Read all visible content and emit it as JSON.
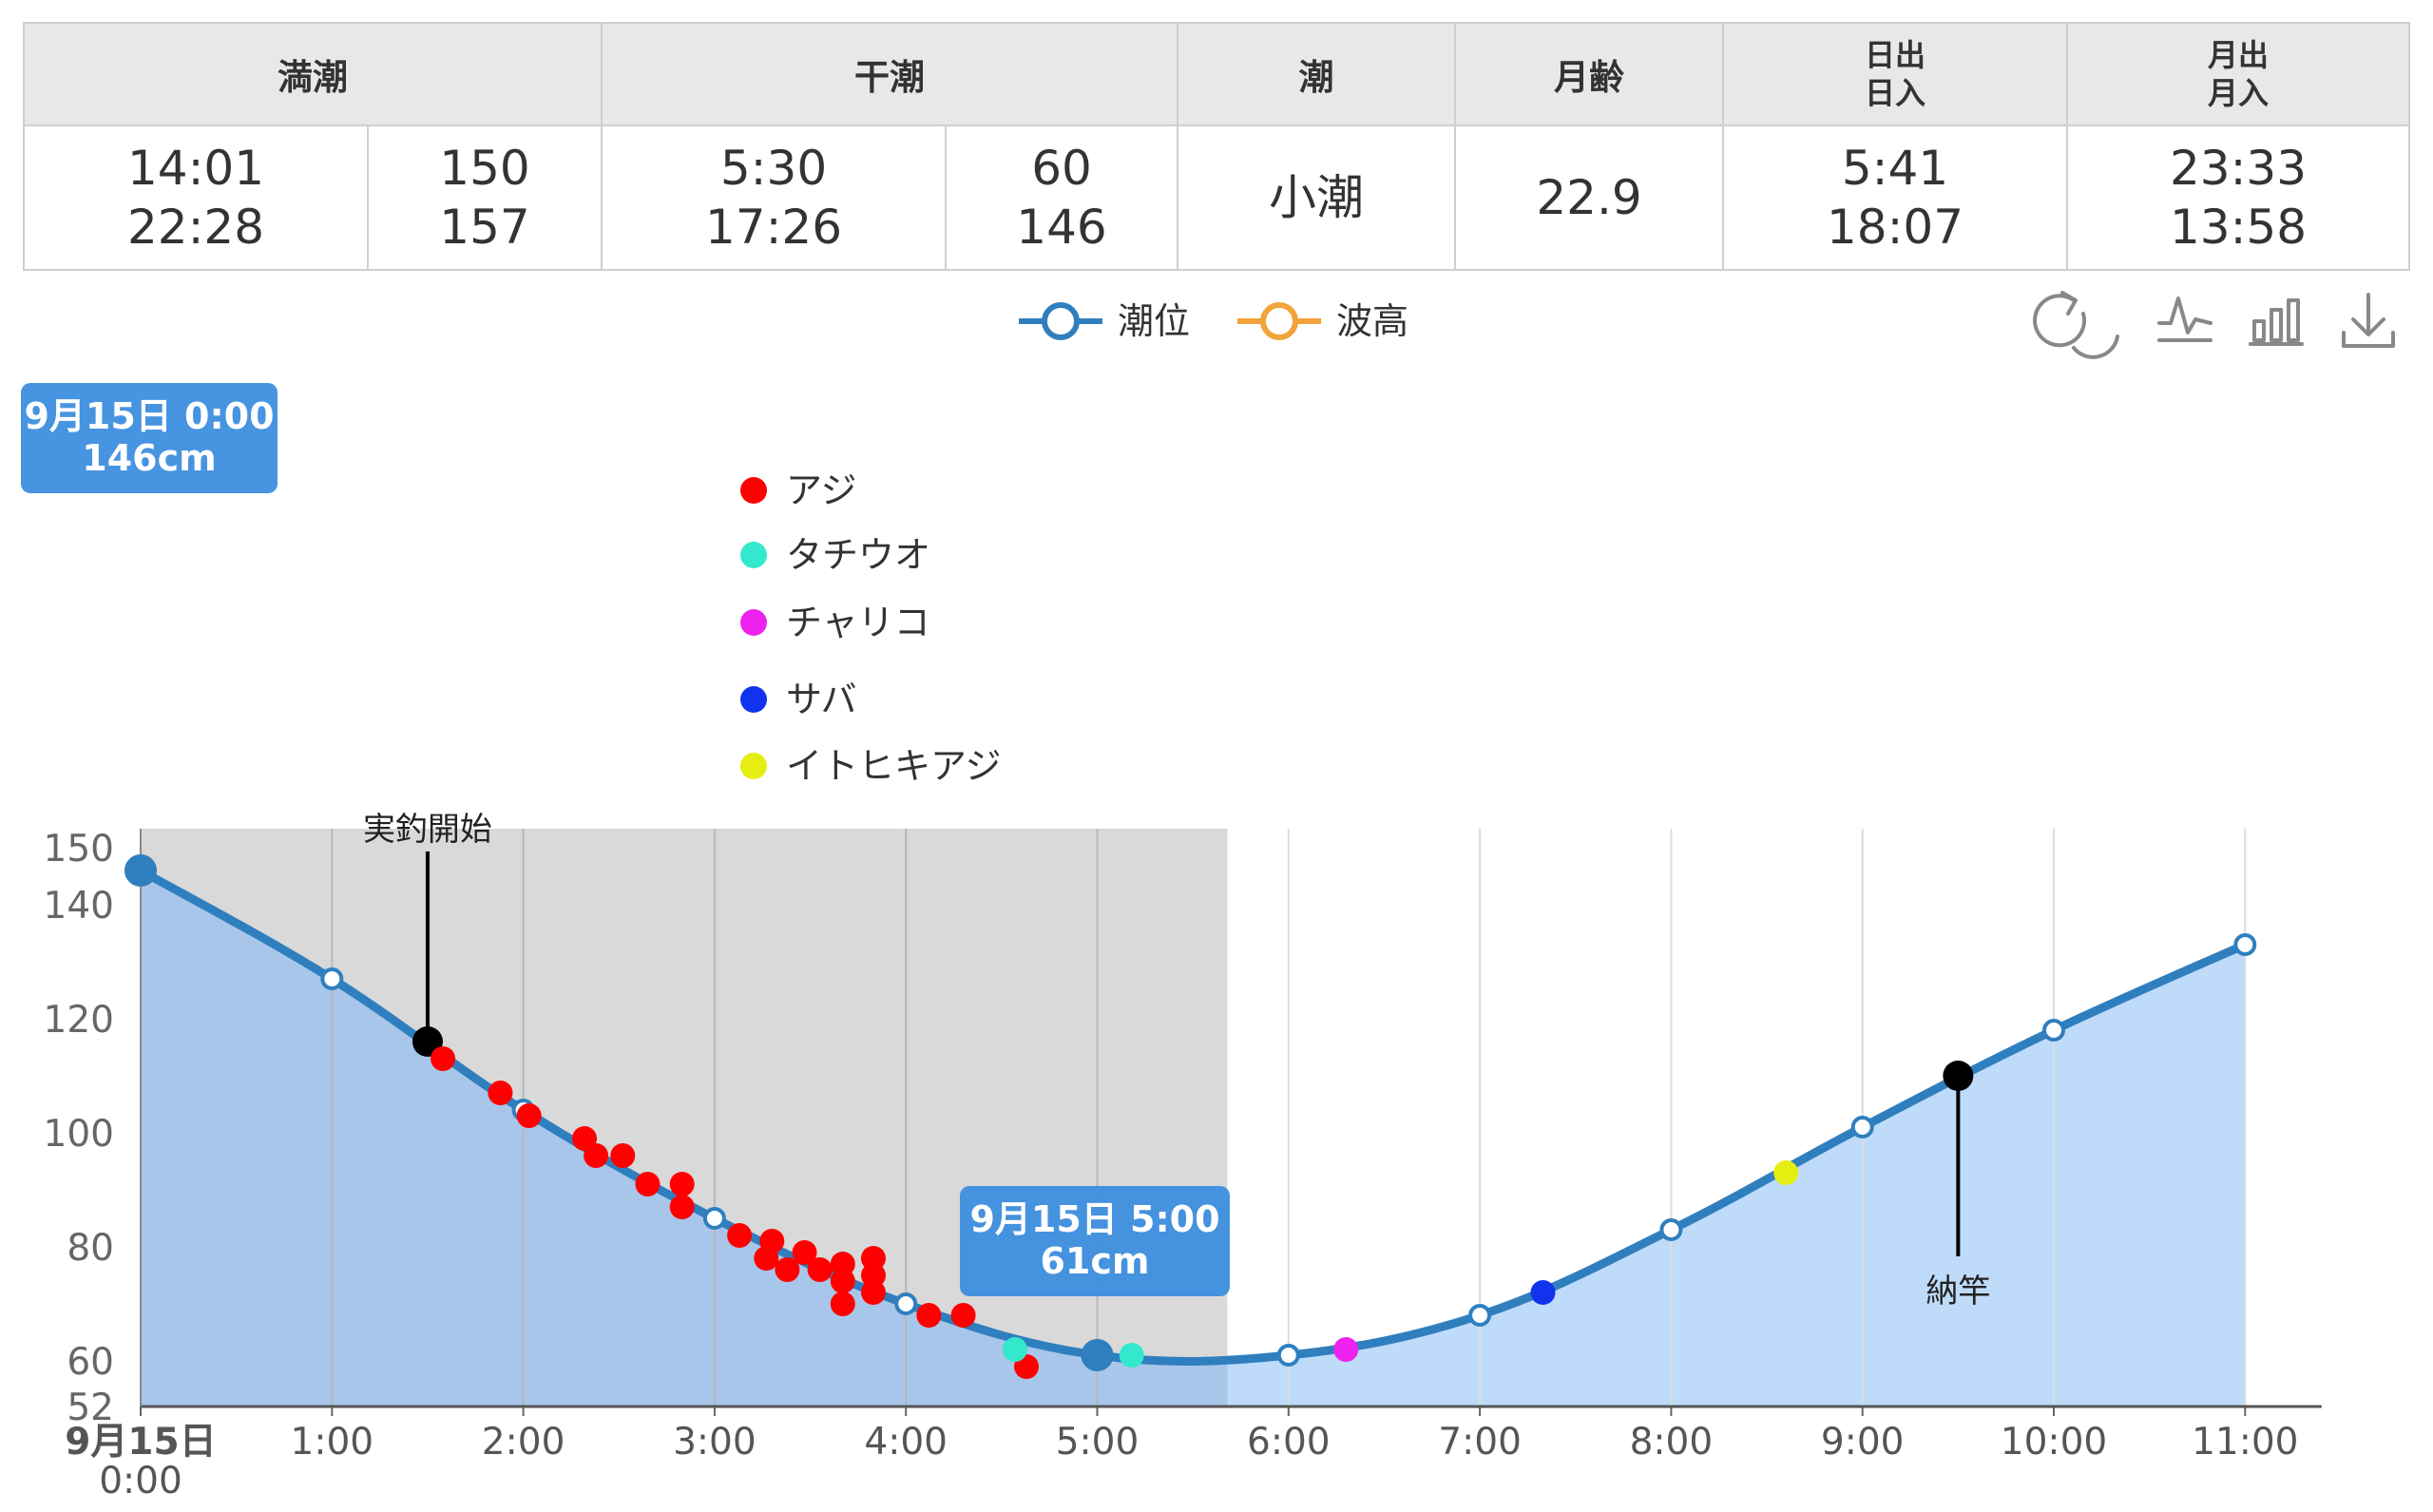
{
  "table": {
    "headers": {
      "high_tide": "満潮",
      "low_tide": "干潮",
      "tide_type": "潮",
      "moon_age": "月齢",
      "sun_rise": "日出",
      "sun_set": "日入",
      "moon_rise": "月出",
      "moon_set": "月入"
    },
    "high_tide_times": [
      "14:01",
      "22:28"
    ],
    "high_tide_levels": [
      "150",
      "157"
    ],
    "low_tide_times": [
      "5:30",
      "17:26"
    ],
    "low_tide_levels": [
      "60",
      "146"
    ],
    "tide_type": "小潮",
    "moon_age": "22.9",
    "sun_times": [
      "5:41",
      "18:07"
    ],
    "moon_times": [
      "23:33",
      "13:58"
    ]
  },
  "colors": {
    "tide_line": "#2f7fbf",
    "area_past": "#a7c5e9",
    "area_future": "#bfdbfa",
    "night_shade": "#d9d9d9",
    "tooltip_bg": "#3d8ede",
    "wave_legend": "#f2a33a",
    "aji": "#ff0000",
    "tachiuo": "#33e8cc",
    "chariko": "#ee22ee",
    "saba": "#1133ee",
    "itohikiaji": "#e5ee11",
    "marker": "#000000"
  },
  "toolbox": [
    "restore-icon",
    "line-chart-icon",
    "bar-chart-icon",
    "download-icon"
  ],
  "chart_data": {
    "type": "line",
    "x_tick_labels": [
      "9月15日",
      "1:00",
      "2:00",
      "3:00",
      "4:00",
      "5:00",
      "6:00",
      "7:00",
      "8:00",
      "9:00",
      "10:00",
      "11:00"
    ],
    "x_first_tick_sub": "0:00",
    "y_tick_labels": [
      "52",
      "60",
      "80",
      "100",
      "120",
      "140",
      "150"
    ],
    "ylim": [
      52,
      150
    ],
    "xlim_hours": [
      0,
      11.4
    ],
    "grid": "vertical",
    "legend": {
      "position": "top-center",
      "entries": [
        {
          "name": "潮位",
          "color": "#2f7fbf"
        },
        {
          "name": "波高",
          "color": "#f2a33a"
        }
      ]
    },
    "shaded_until_hour": 5.68,
    "series": [
      {
        "name": "潮位",
        "hours": [
          0,
          1,
          2,
          3,
          4,
          5,
          6,
          7,
          8,
          9,
          10,
          11
        ],
        "values": [
          146,
          127,
          104,
          85,
          70,
          61,
          61,
          68,
          83,
          101,
          118,
          133
        ]
      }
    ],
    "tooltips": [
      {
        "line1": "9月15日 0:00",
        "line2": "146cm",
        "hour": 0,
        "value": 146
      },
      {
        "line1": "9月15日 5:00",
        "line2": "61cm",
        "hour": 5,
        "value": 61
      }
    ],
    "fish_legend": [
      {
        "name": "アジ",
        "color_key": "aji"
      },
      {
        "name": "タチウオ",
        "color_key": "tachiuo"
      },
      {
        "name": "チャリコ",
        "color_key": "chariko"
      },
      {
        "name": "サバ",
        "color_key": "saba"
      },
      {
        "name": "イトヒキアジ",
        "color_key": "itohikiaji"
      }
    ],
    "annotations": [
      {
        "label": "実釣開始",
        "hour": 1.5,
        "value": 116,
        "side": "above"
      },
      {
        "label": "納竿",
        "hour": 9.5,
        "value": 110,
        "side": "below"
      }
    ],
    "catches": [
      {
        "hour": 1.58,
        "value": 113,
        "color_key": "aji"
      },
      {
        "hour": 1.88,
        "value": 107,
        "color_key": "aji"
      },
      {
        "hour": 2.03,
        "value": 103,
        "color_key": "aji"
      },
      {
        "hour": 2.32,
        "value": 99,
        "color_key": "aji"
      },
      {
        "hour": 2.38,
        "value": 96,
        "color_key": "aji"
      },
      {
        "hour": 2.52,
        "value": 96,
        "color_key": "aji"
      },
      {
        "hour": 2.65,
        "value": 91,
        "color_key": "aji"
      },
      {
        "hour": 2.83,
        "value": 91,
        "color_key": "aji"
      },
      {
        "hour": 2.83,
        "value": 87,
        "color_key": "aji"
      },
      {
        "hour": 3.13,
        "value": 82,
        "color_key": "aji"
      },
      {
        "hour": 3.3,
        "value": 81,
        "color_key": "aji"
      },
      {
        "hour": 3.27,
        "value": 78,
        "color_key": "aji"
      },
      {
        "hour": 3.38,
        "value": 76,
        "color_key": "aji"
      },
      {
        "hour": 3.47,
        "value": 79,
        "color_key": "aji"
      },
      {
        "hour": 3.55,
        "value": 76,
        "color_key": "aji"
      },
      {
        "hour": 3.67,
        "value": 77,
        "color_key": "aji"
      },
      {
        "hour": 3.67,
        "value": 74,
        "color_key": "aji"
      },
      {
        "hour": 3.67,
        "value": 70,
        "color_key": "aji"
      },
      {
        "hour": 3.83,
        "value": 78,
        "color_key": "aji"
      },
      {
        "hour": 3.83,
        "value": 75,
        "color_key": "aji"
      },
      {
        "hour": 3.83,
        "value": 72,
        "color_key": "aji"
      },
      {
        "hour": 4.12,
        "value": 68,
        "color_key": "aji"
      },
      {
        "hour": 4.3,
        "value": 68,
        "color_key": "aji"
      },
      {
        "hour": 4.63,
        "value": 59,
        "color_key": "aji"
      },
      {
        "hour": 4.57,
        "value": 62,
        "color_key": "tachiuo"
      },
      {
        "hour": 5.18,
        "value": 61,
        "color_key": "tachiuo"
      },
      {
        "hour": 6.3,
        "value": 62,
        "color_key": "chariko"
      },
      {
        "hour": 7.33,
        "value": 72,
        "color_key": "saba"
      },
      {
        "hour": 8.6,
        "value": 93,
        "color_key": "itohikiaji"
      }
    ]
  }
}
